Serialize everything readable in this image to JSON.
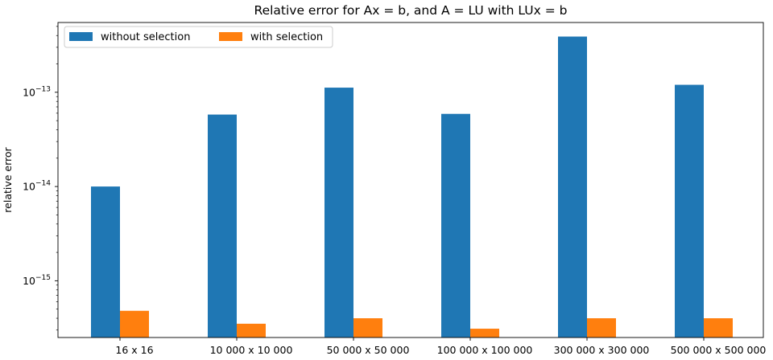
{
  "chart_data": {
    "type": "bar",
    "title": "Relative error for Ax = b, and A = LU with LUx = b",
    "xlabel": "",
    "ylabel": "relative error",
    "yscale": "log",
    "ylim": [
      2.5e-16,
      5.5e-13
    ],
    "yticks": [
      {
        "value": 1e-15,
        "base": "10",
        "exp": "−15"
      },
      {
        "value": 1e-14,
        "base": "10",
        "exp": "−14"
      },
      {
        "value": 1e-13,
        "base": "10",
        "exp": "−13"
      }
    ],
    "categories": [
      "16 x 16",
      "10 000 x 10 000",
      "50 000 x 50 000",
      "100 000 x 100 000",
      "300 000 x 300 000",
      "500 000 x 500 000"
    ],
    "series": [
      {
        "name": "without selection",
        "color": "#1f77b4",
        "values": [
          1e-14,
          5.8e-14,
          1.12e-13,
          5.9e-14,
          3.9e-13,
          1.2e-13
        ]
      },
      {
        "name": "with selection",
        "color": "#ff7f0e",
        "values": [
          4.8e-16,
          3.5e-16,
          4e-16,
          3.1e-16,
          4e-16,
          4e-16
        ]
      }
    ],
    "legend": {
      "placement": "top-left",
      "columns": 2
    },
    "grid": false
  }
}
